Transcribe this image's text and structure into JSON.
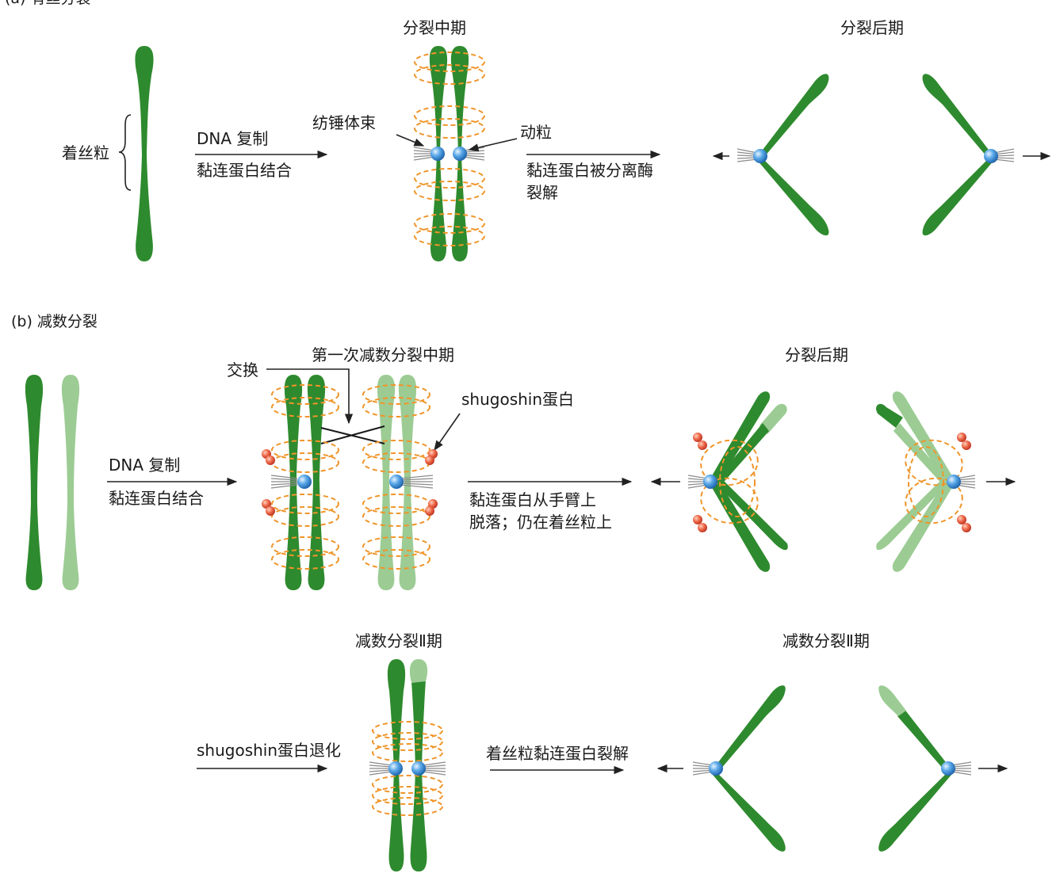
{
  "mitosis": {
    "section_label": "(a) 有丝分裂",
    "centromere_label": "着丝粒",
    "step1_line1": "DNA 复制",
    "step1_line2": "黏连蛋白结合",
    "metaphase_title": "分裂中期",
    "spindle_label": "纺锤体束",
    "kinetochore_label": "动粒",
    "step2_line1": "黏连蛋白被分离酶",
    "step2_line2": "裂解",
    "anaphase_title": "分裂后期"
  },
  "meiosis": {
    "section_label": "(b) 减数分裂",
    "step1_line1": "DNA 复制",
    "step1_line2": "黏连蛋白结合",
    "metaphase1_title": "第一次减数分裂中期",
    "crossover_label": "交换",
    "shugoshin_label": "shugoshin蛋白",
    "step2_line1": "黏连蛋白从手臂上",
    "step2_line2": "脱落；仍在着丝粒上",
    "anaphase1_title": "分裂后期",
    "meiosis2_title_a": "减数分裂Ⅱ期",
    "meiosis2_title_b": "减数分裂Ⅱ期",
    "step3_label": "shugoshin蛋白退化",
    "step4_label": "着丝粒黏连蛋白裂解"
  },
  "colors": {
    "dark_green": "#2e8a2e",
    "light_green": "#9ccc94",
    "cohesin_orange": "#f0952a",
    "kinetochore_blue": "#3a8fd6",
    "shugoshin_red": "#e04a32"
  }
}
